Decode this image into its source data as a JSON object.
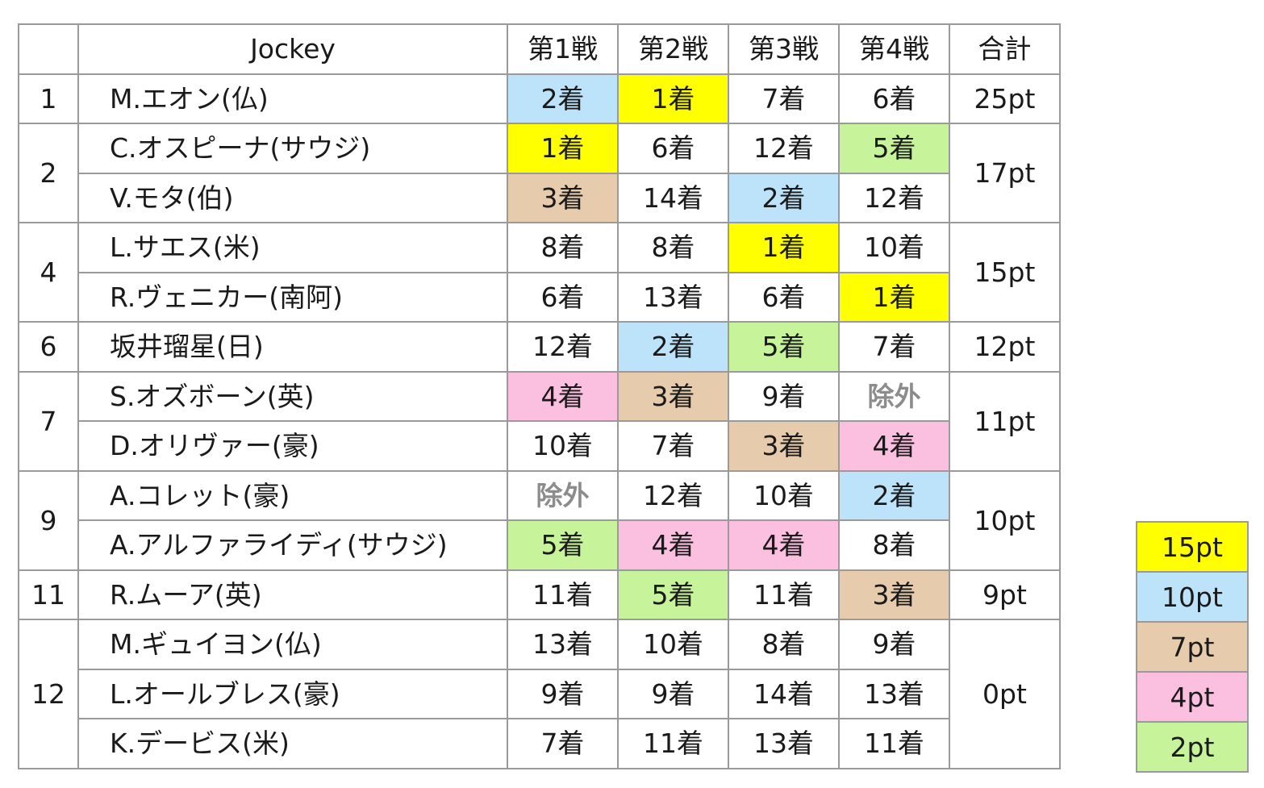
{
  "table": {
    "headers": [
      "",
      "Jockey",
      "第1戦",
      "第2戦",
      "第3戦",
      "第4戦",
      "合計"
    ],
    "groups": [
      {
        "rank": "1",
        "total": "25pt",
        "riders": [
          {
            "name": "M.エオン(仏)",
            "results": [
              {
                "t": "2着",
                "c": "#bde3fb"
              },
              {
                "t": "1着",
                "c": "#ffff00"
              },
              {
                "t": "7着"
              },
              {
                "t": "6着"
              }
            ]
          }
        ]
      },
      {
        "rank": "2",
        "total": "17pt",
        "riders": [
          {
            "name": "C.オスピーナ(サウジ)",
            "results": [
              {
                "t": "1着",
                "c": "#ffff00"
              },
              {
                "t": "6着"
              },
              {
                "t": "12着"
              },
              {
                "t": "5着",
                "c": "#c7f39b"
              }
            ]
          },
          {
            "name": "V.モタ(伯)",
            "results": [
              {
                "t": "3着",
                "c": "#e7cbad"
              },
              {
                "t": "14着"
              },
              {
                "t": "2着",
                "c": "#bde3fb"
              },
              {
                "t": "12着"
              }
            ]
          }
        ]
      },
      {
        "rank": "4",
        "total": "15pt",
        "riders": [
          {
            "name": "L.サエス(米)",
            "results": [
              {
                "t": "8着"
              },
              {
                "t": "8着"
              },
              {
                "t": "1着",
                "c": "#ffff00"
              },
              {
                "t": "10着"
              }
            ]
          },
          {
            "name": "R.ヴェニカー(南阿)",
            "results": [
              {
                "t": "6着"
              },
              {
                "t": "13着"
              },
              {
                "t": "6着"
              },
              {
                "t": "1着",
                "c": "#ffff00"
              }
            ]
          }
        ]
      },
      {
        "rank": "6",
        "total": "12pt",
        "riders": [
          {
            "name": "坂井瑠星(日)",
            "results": [
              {
                "t": "12着"
              },
              {
                "t": "2着",
                "c": "#bde3fb"
              },
              {
                "t": "5着",
                "c": "#c7f39b"
              },
              {
                "t": "7着"
              }
            ]
          }
        ]
      },
      {
        "rank": "7",
        "total": "11pt",
        "riders": [
          {
            "name": "S.オズボーン(英)",
            "results": [
              {
                "t": "4着",
                "c": "#fbbfe0"
              },
              {
                "t": "3着",
                "c": "#e7cbad"
              },
              {
                "t": "9着"
              },
              {
                "t": "除外",
                "x": true
              }
            ]
          },
          {
            "name": "D.オリヴァー(豪)",
            "results": [
              {
                "t": "10着"
              },
              {
                "t": "7着"
              },
              {
                "t": "3着",
                "c": "#e7cbad"
              },
              {
                "t": "4着",
                "c": "#fbbfe0"
              }
            ]
          }
        ]
      },
      {
        "rank": "9",
        "total": "10pt",
        "riders": [
          {
            "name": "A.コレット(豪)",
            "results": [
              {
                "t": "除外",
                "x": true
              },
              {
                "t": "12着"
              },
              {
                "t": "10着"
              },
              {
                "t": "2着",
                "c": "#bde3fb"
              }
            ]
          },
          {
            "name": "A.アルファライディ(サウジ)",
            "results": [
              {
                "t": "5着",
                "c": "#c7f39b"
              },
              {
                "t": "4着",
                "c": "#fbbfe0"
              },
              {
                "t": "4着",
                "c": "#fbbfe0"
              },
              {
                "t": "8着"
              }
            ]
          }
        ]
      },
      {
        "rank": "11",
        "total": "9pt",
        "riders": [
          {
            "name": "R.ムーア(英)",
            "results": [
              {
                "t": "11着"
              },
              {
                "t": "5着",
                "c": "#c7f39b"
              },
              {
                "t": "11着"
              },
              {
                "t": "3着",
                "c": "#e7cbad"
              }
            ]
          }
        ]
      },
      {
        "rank": "12",
        "total": "0pt",
        "riders": [
          {
            "name": "M.ギュイヨン(仏)",
            "results": [
              {
                "t": "13着"
              },
              {
                "t": "10着"
              },
              {
                "t": "8着"
              },
              {
                "t": "9着"
              }
            ]
          },
          {
            "name": "L.オールブレス(豪)",
            "results": [
              {
                "t": "9着"
              },
              {
                "t": "9着"
              },
              {
                "t": "14着"
              },
              {
                "t": "13着"
              }
            ]
          },
          {
            "name": "K.デービス(米)",
            "results": [
              {
                "t": "7着"
              },
              {
                "t": "11着"
              },
              {
                "t": "13着"
              },
              {
                "t": "11着"
              }
            ]
          }
        ]
      }
    ]
  },
  "legend": [
    {
      "label": "15pt",
      "color": "#ffff00"
    },
    {
      "label": "10pt",
      "color": "#bde3fb"
    },
    {
      "label": "7pt",
      "color": "#e7cbad"
    },
    {
      "label": "4pt",
      "color": "#fbbfe0"
    },
    {
      "label": "2pt",
      "color": "#c7f39b"
    }
  ]
}
